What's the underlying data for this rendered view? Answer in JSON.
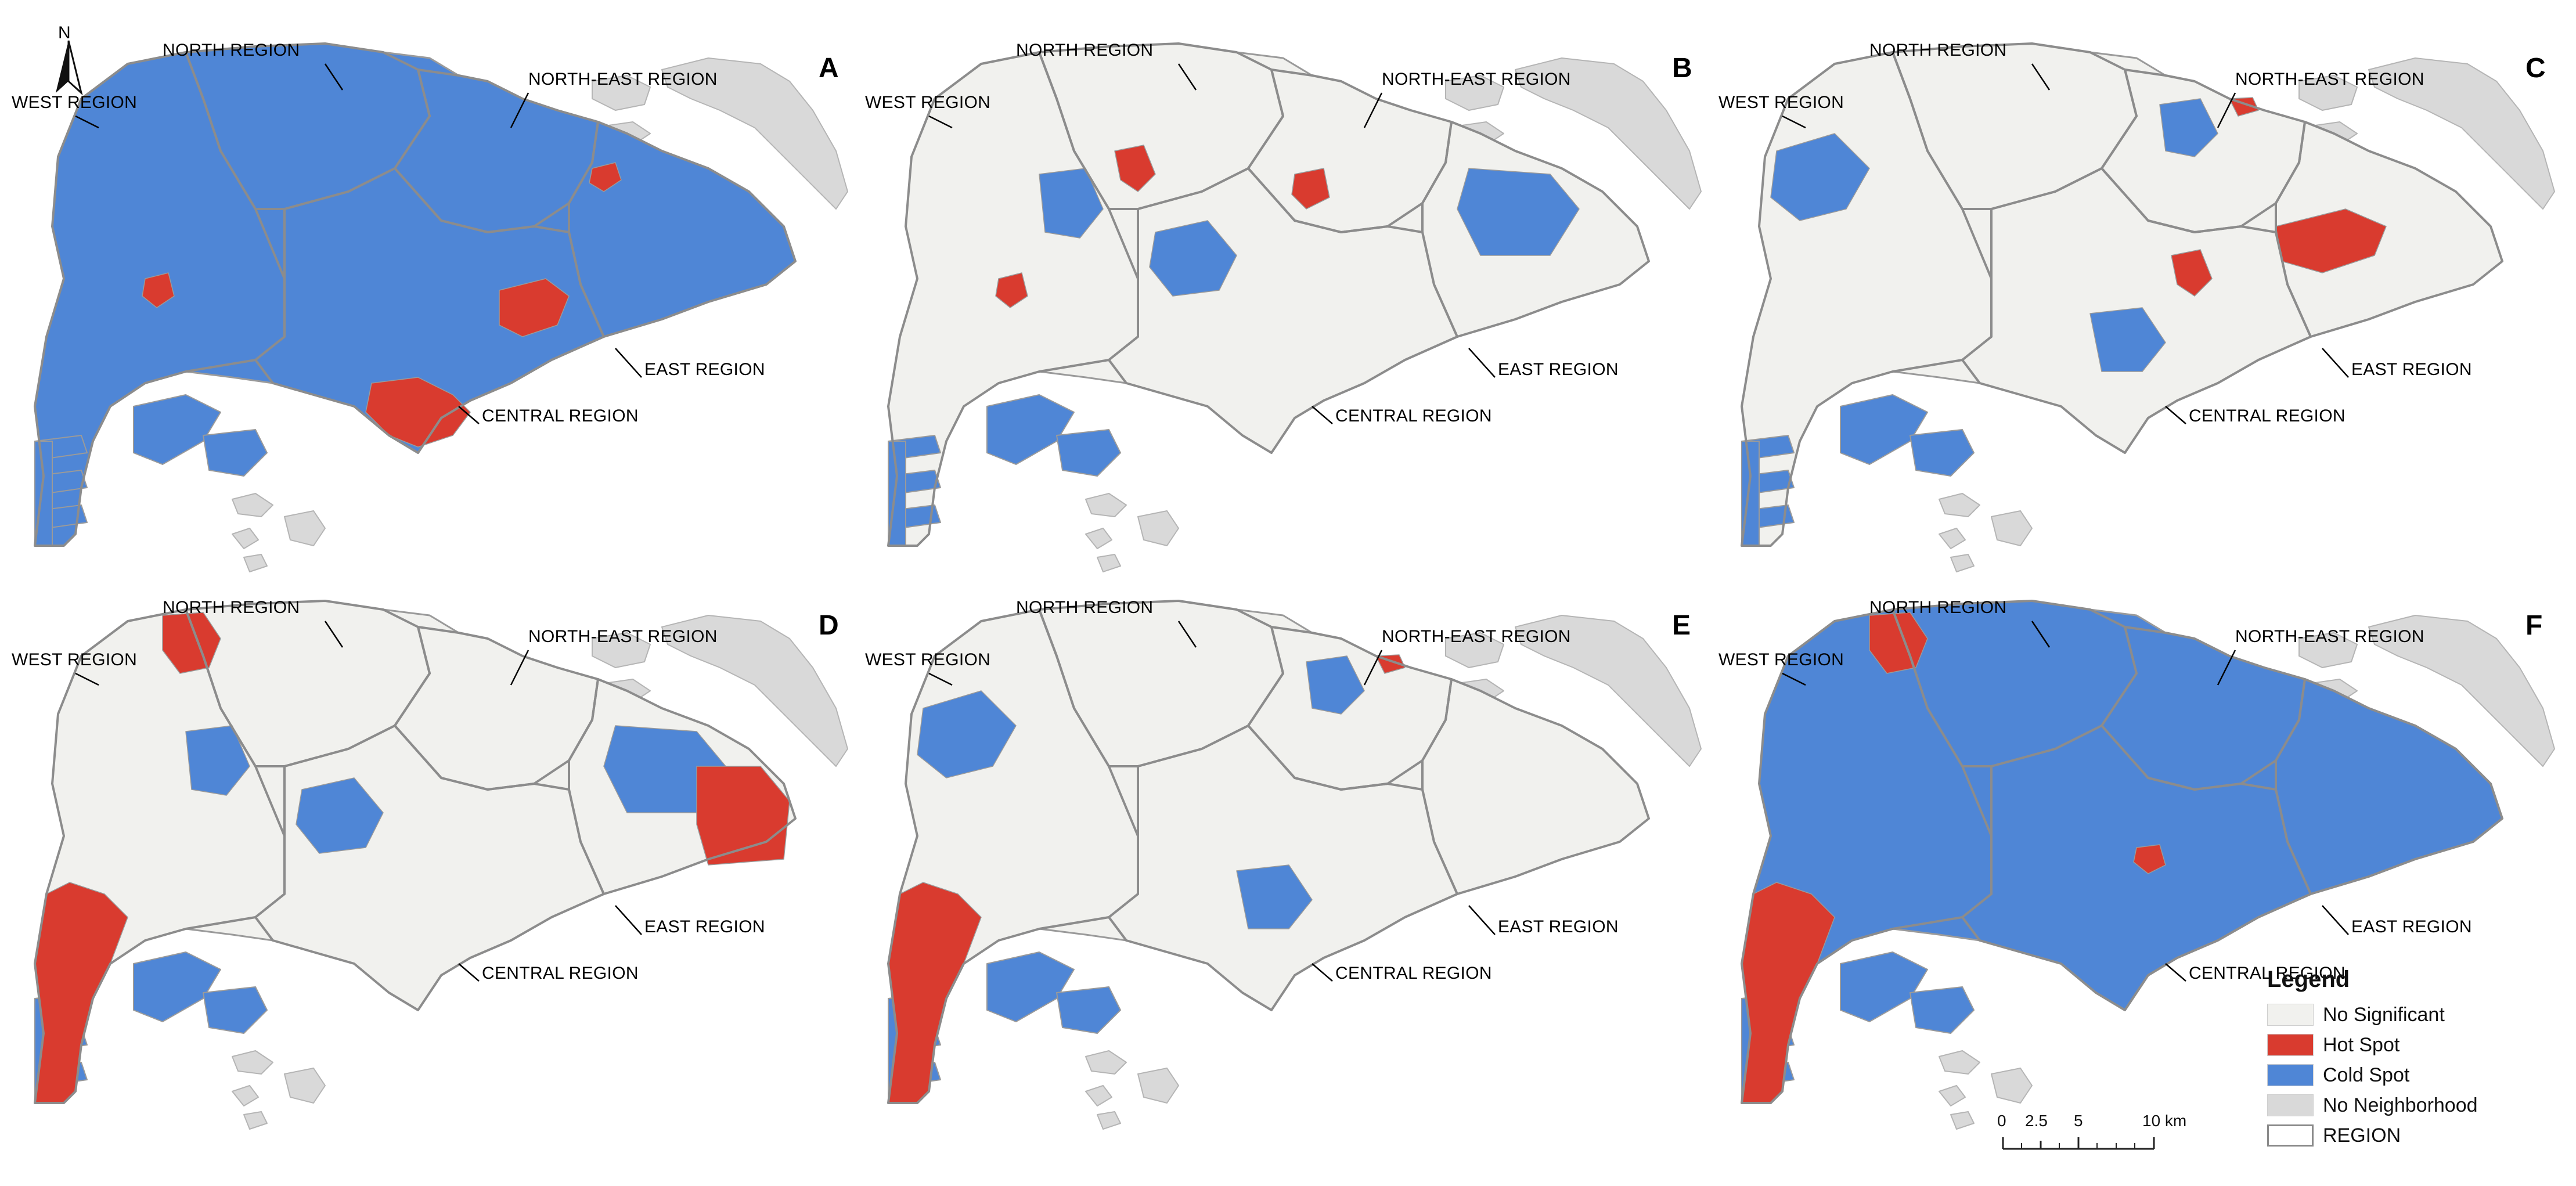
{
  "north_label": "N",
  "region_labels": {
    "west": "WEST REGION",
    "north": "NORTH REGION",
    "north_east": "NORTH-EAST REGION",
    "east": "EAST REGION",
    "central": "CENTRAL REGION"
  },
  "panels": [
    {
      "letter": "A",
      "dominant_class": "cold",
      "hot_spots": [
        "central-south",
        "east-inner",
        "north-east-inner",
        "west-inner"
      ]
    },
    {
      "letter": "B",
      "dominant_class": "none",
      "hot_spots": [
        "west-inner",
        "north-inner",
        "central-north"
      ]
    },
    {
      "letter": "C",
      "dominant_class": "none",
      "hot_spots": [
        "east",
        "central-east",
        "north-east-tip"
      ]
    },
    {
      "letter": "D",
      "dominant_class": "none",
      "hot_spots": [
        "west",
        "north-west",
        "east-far"
      ]
    },
    {
      "letter": "E",
      "dominant_class": "none",
      "hot_spots": [
        "west",
        "north-east-tip"
      ]
    },
    {
      "letter": "F",
      "dominant_class": "cold",
      "hot_spots": [
        "west",
        "north-west",
        "central-small"
      ]
    }
  ],
  "legend": {
    "title": "Legend",
    "items": [
      {
        "key": "none",
        "label": "No Significant",
        "color": "#f1f1ee"
      },
      {
        "key": "hot",
        "label": "Hot Spot",
        "color": "#d93b2f"
      },
      {
        "key": "cold",
        "label": "Cold Spot",
        "color": "#4f86d6"
      },
      {
        "key": "nn",
        "label": "No Neighborhood",
        "color": "#d9d9d9"
      },
      {
        "key": "region",
        "label": "REGION",
        "color": "#ffffff"
      }
    ]
  },
  "scale_bar": {
    "ticks": [
      "0",
      "2.5",
      "5",
      "10 km"
    ]
  },
  "colors": {
    "none": "#f1f1ee",
    "hot": "#d93b2f",
    "cold": "#4f86d6",
    "no_neighborhood": "#d9d9d9",
    "boundary": "#9a9a9a"
  }
}
